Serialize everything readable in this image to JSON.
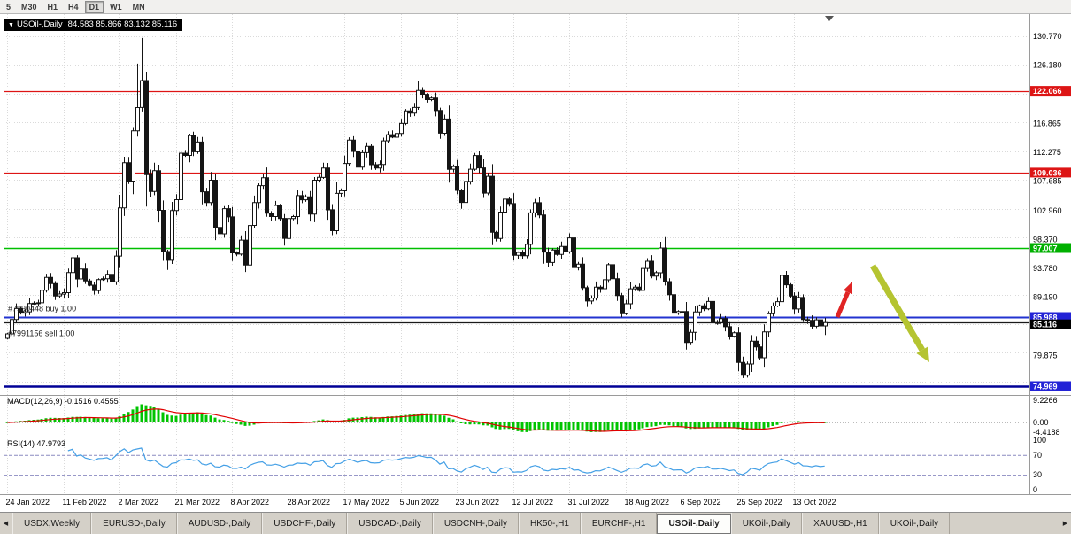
{
  "toolbar": {
    "timeframes": [
      "5",
      "M30",
      "H1",
      "H4",
      "D1",
      "W1",
      "MN"
    ],
    "active": "D1"
  },
  "title_box": {
    "dropdown_icon": "▼",
    "symbol": "USOil-,Daily",
    "ohlc": "84.583 85.866 83.132 85.116"
  },
  "orders": [
    {
      "label": "#7990448 buy 1.00",
      "price": 86.9
    },
    {
      "label": "#7991156 sell 1.00",
      "price": 82.95
    }
  ],
  "levels": [
    {
      "price": 122.066,
      "color": "#dd1515",
      "width": 1.3,
      "dash": "",
      "badge": "#dd1515"
    },
    {
      "price": 109.036,
      "color": "#dd1515",
      "width": 1.3,
      "dash": "",
      "badge": "#dd1515"
    },
    {
      "price": 97.007,
      "color": "#00bf00",
      "width": 1.5,
      "dash": "",
      "badge": "#00b000"
    },
    {
      "price": 85.988,
      "color": "#2233d0",
      "width": 2,
      "dash": "",
      "badge": "#2323d6"
    },
    {
      "price": 85.116,
      "color": "#1a1a1a",
      "width": 1.2,
      "dash": "",
      "badge": "#000000",
      "nudge": 2
    },
    {
      "price": 81.75,
      "color": "#00a800",
      "width": 1,
      "dash": "8 3 2 3",
      "badge": null
    },
    {
      "price": 74.969,
      "color": "#000096",
      "width": 2.4,
      "dash": "",
      "badge": "#2323d6"
    }
  ],
  "axis": {
    "ticks": [
      130.77,
      126.18,
      116.865,
      112.275,
      107.685,
      102.96,
      98.37,
      93.78,
      89.19,
      79.875
    ]
  },
  "dates": {
    "labels": [
      "24 Jan 2022",
      "11 Feb 2022",
      "2 Mar 2022",
      "21 Mar 2022",
      "8 Apr 2022",
      "28 Apr 2022",
      "17 May 2022",
      "5 Jun 2022",
      "23 Jun 2022",
      "12 Jul 2022",
      "31 Jul 2022",
      "18 Aug 2022",
      "6 Sep 2022",
      "25 Sep 2022",
      "13 Oct 2022"
    ],
    "indices": [
      0,
      13,
      26,
      39,
      52,
      65,
      78,
      91,
      104,
      117,
      130,
      143,
      156,
      169,
      182
    ]
  },
  "macd": {
    "label": "MACD(12,26,9) -0.1516 0.4555",
    "axis": [
      "9.2266",
      "0.00",
      "-4.4188"
    ]
  },
  "rsi": {
    "label": "RSI(14) 47.9793",
    "axis": [
      "100",
      "70",
      "30",
      "0"
    ],
    "levels": [
      70,
      30
    ]
  },
  "tabs": {
    "items": [
      "USDX,Weekly",
      "EURUSD-,Daily",
      "AUDUSD-,Daily",
      "USDCHF-,Daily",
      "USDCAD-,Daily",
      "USDCNH-,Daily",
      "HK50-,H1",
      "EURCHF-,H1",
      "USOil-,Daily",
      "UKOil-,Daily",
      "XAUUSD-,H1",
      "UKOil-,Daily"
    ],
    "active_index": 8,
    "scroll_left_icon": "◀",
    "scroll_right_icon": "▶"
  },
  "annotations": [
    {
      "type": "arrow",
      "direction": "up-right",
      "color": "#e02424"
    },
    {
      "type": "arrow",
      "direction": "down-right",
      "color": "#b5c431"
    }
  ],
  "chart_data": {
    "type": "candlestick",
    "symbol": "USOil-",
    "timeframe": "Daily",
    "ylim": [
      74.0,
      132.6
    ],
    "first_open": 82.6,
    "closes": [
      83.31,
      85.6,
      87.35,
      86.61,
      86.82,
      88.15,
      88.2,
      88.26,
      90.27,
      92.31,
      91.32,
      89.36,
      89.66,
      89.88,
      93.1,
      95.46,
      92.07,
      93.66,
      91.76,
      91.07,
      90.21,
      91.95,
      92.1,
      92.81,
      91.59,
      95.72,
      103.41,
      110.6,
      107.67,
      115.68,
      119.4,
      123.7,
      108.7,
      106.02,
      109.33,
      103.01,
      96.44,
      95.04,
      102.98,
      104.7,
      112.12,
      111.76,
      114.93,
      112.34,
      113.9,
      105.96,
      104.24,
      107.82,
      100.28,
      99.27,
      103.28,
      101.96,
      96.23,
      96.03,
      98.26,
      94.29,
      100.6,
      104.25,
      106.95,
      108.21,
      102.56,
      102.02,
      103.79,
      101.72,
      98.54,
      101.7,
      102.02,
      105.36,
      104.69,
      105.17,
      102.41,
      107.81,
      108.26,
      109.77,
      103.09,
      99.76,
      105.71,
      106.13,
      110.49,
      114.2,
      112.4,
      109.89,
      112.21,
      113.23,
      110.29,
      109.77,
      110.33,
      114.09,
      115.07,
      114.67,
      115.26,
      116.87,
      118.87,
      118.5,
      119.41,
      122.11,
      121.51,
      120.67,
      120.93,
      118.93,
      115.31,
      117.58,
      109.56,
      109.99,
      106.19,
      104.27,
      107.62,
      109.57,
      111.76,
      109.78,
      105.76,
      108.43,
      99.5,
      98.53,
      102.73,
      104.79,
      104.09,
      95.84,
      96.3,
      95.78,
      97.59,
      102.6,
      104.22,
      102.26,
      96.35,
      94.7,
      96.7,
      95.98,
      97.26,
      96.42,
      98.62,
      93.89,
      94.42,
      90.66,
      88.54,
      89.01,
      90.76,
      90.5,
      91.93,
      94.34,
      92.09,
      89.41,
      86.53,
      88.11,
      90.5,
      90.77,
      90.23,
      93.74,
      94.89,
      92.52,
      93.06,
      97.01,
      91.64,
      89.55,
      86.61,
      86.87,
      86.88,
      81.94,
      83.54,
      86.79,
      87.78,
      87.31,
      88.48,
      85.1,
      85.11,
      85.73,
      84.45,
      82.94,
      83.49,
      78.74,
      76.71,
      78.5,
      82.15,
      81.23,
      79.49,
      83.63,
      86.52,
      87.76,
      88.45,
      92.64,
      91.13,
      89.35,
      87.27,
      89.11,
      85.61,
      85.46,
      84.52,
      85.55,
      84.58,
      85.12
    ],
    "wick_overrides": {
      "30": {
        "h": 126.4
      },
      "31": {
        "h": 130.5
      },
      "32": {
        "l": 103.6
      },
      "37": {
        "l": 93.5
      },
      "95": {
        "h": 123.68
      },
      "170": {
        "l": 76.25
      }
    },
    "last_bar": {
      "open": 84.583,
      "high": 85.866,
      "low": 83.132,
      "close": 85.116
    }
  }
}
